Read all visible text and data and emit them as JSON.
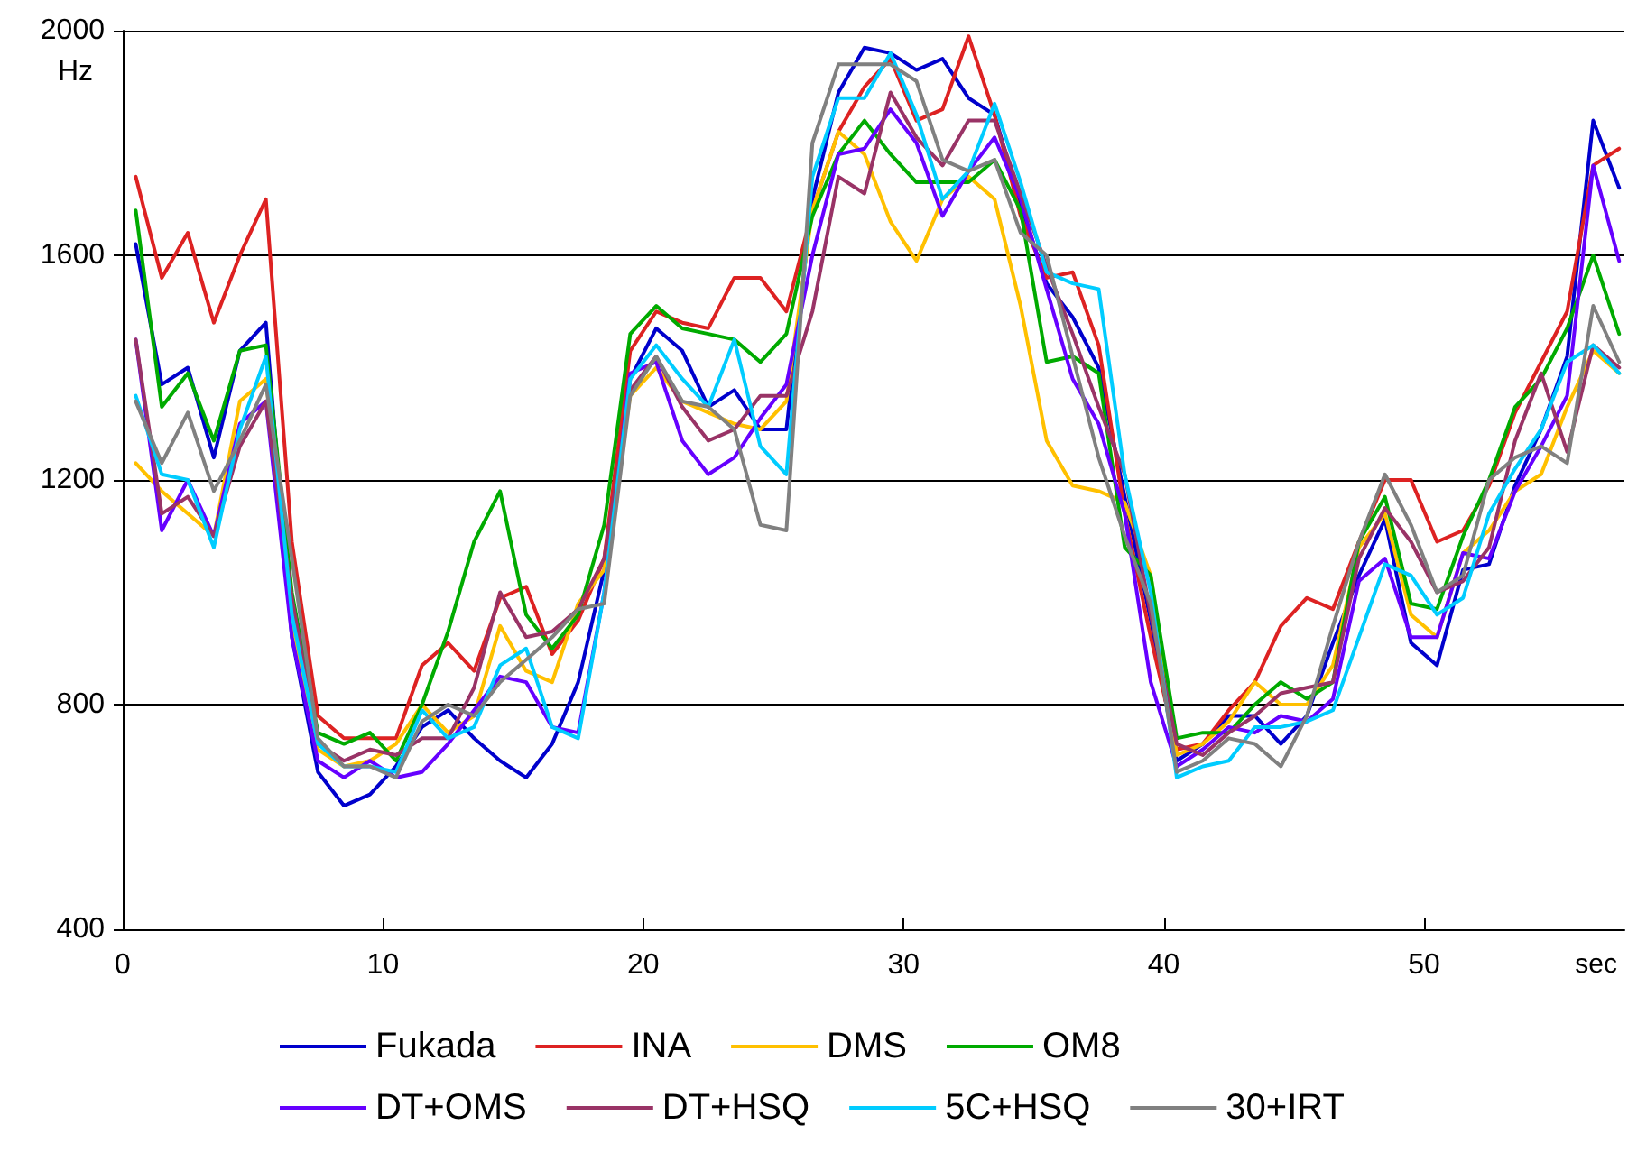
{
  "chart_data": {
    "type": "line",
    "xlabel": "sec",
    "ylabel": "Hz",
    "x": [
      0.5,
      1.5,
      2.5,
      3.5,
      4.5,
      5.5,
      6.5,
      7.5,
      8.5,
      9.5,
      10.5,
      11.5,
      12.5,
      13.5,
      14.5,
      15.5,
      16.5,
      17.5,
      18.5,
      19.5,
      20.5,
      21.5,
      22.5,
      23.5,
      24.5,
      25.5,
      26.5,
      27.5,
      28.5,
      29.5,
      30.5,
      31.5,
      32.5,
      33.5,
      34.5,
      35.5,
      36.5,
      37.5,
      38.5,
      39.5,
      40.5,
      41.5,
      42.5,
      43.5,
      44.5,
      45.5,
      46.5,
      47.5,
      48.5,
      49.5,
      50.5,
      51.5,
      52.5,
      53.5,
      54.5,
      55.5,
      56.5,
      57.5
    ],
    "xlim": [
      0,
      57.7
    ],
    "xticks": [
      0,
      10,
      20,
      30,
      40,
      50
    ],
    "ylim": [
      400,
      2000
    ],
    "yticks": [
      400,
      800,
      1200,
      1600,
      2000
    ],
    "grid": "y",
    "legend": "bottom",
    "marker": "none",
    "line_style": "solid",
    "series": [
      {
        "name": "Fukada",
        "color": "#0000cc",
        "values": [
          1620,
          1370,
          1400,
          1240,
          1430,
          1480,
          920,
          680,
          620,
          640,
          690,
          760,
          790,
          740,
          700,
          670,
          730,
          840,
          1040,
          1380,
          1470,
          1430,
          1330,
          1360,
          1290,
          1290,
          1700,
          1890,
          1970,
          1960,
          1930,
          1950,
          1880,
          1850,
          1690,
          1550,
          1490,
          1400,
          1170,
          950,
          700,
          730,
          780,
          780,
          730,
          780,
          910,
          1030,
          1130,
          910,
          870,
          1040,
          1050,
          1190,
          1290,
          1420,
          1840,
          1720
        ]
      },
      {
        "name": "INA",
        "color": "#dd2222",
        "values": [
          1740,
          1560,
          1640,
          1480,
          1600,
          1700,
          1090,
          780,
          740,
          740,
          740,
          870,
          910,
          860,
          990,
          1010,
          890,
          950,
          1060,
          1430,
          1500,
          1480,
          1470,
          1560,
          1560,
          1500,
          1680,
          1820,
          1900,
          1950,
          1840,
          1860,
          1990,
          1850,
          1670,
          1560,
          1570,
          1440,
          1140,
          920,
          720,
          730,
          790,
          840,
          940,
          990,
          970,
          1090,
          1200,
          1200,
          1090,
          1110,
          1190,
          1320,
          1410,
          1500,
          1760,
          1790
        ]
      },
      {
        "name": "DMS",
        "color": "#ffc000",
        "values": [
          1230,
          1180,
          1140,
          1100,
          1340,
          1380,
          950,
          720,
          690,
          700,
          730,
          800,
          750,
          780,
          940,
          860,
          840,
          980,
          1040,
          1350,
          1400,
          1340,
          1320,
          1300,
          1290,
          1340,
          1680,
          1820,
          1780,
          1660,
          1590,
          1700,
          1740,
          1700,
          1510,
          1270,
          1190,
          1180,
          1160,
          1030,
          710,
          730,
          770,
          840,
          800,
          800,
          870,
          1080,
          1140,
          960,
          920,
          1070,
          1110,
          1180,
          1210,
          1330,
          1430,
          1390
        ]
      },
      {
        "name": "OM8",
        "color": "#00aa00",
        "values": [
          1680,
          1330,
          1390,
          1270,
          1430,
          1440,
          1000,
          750,
          730,
          750,
          700,
          800,
          930,
          1090,
          1180,
          960,
          900,
          960,
          1120,
          1460,
          1510,
          1470,
          1460,
          1450,
          1410,
          1460,
          1670,
          1780,
          1840,
          1780,
          1730,
          1730,
          1730,
          1770,
          1680,
          1410,
          1420,
          1390,
          1080,
          1030,
          740,
          750,
          750,
          800,
          840,
          810,
          840,
          1090,
          1170,
          980,
          970,
          1100,
          1200,
          1330,
          1380,
          1470,
          1600,
          1460
        ]
      },
      {
        "name": "DT+OMS",
        "color": "#6600ff",
        "values": [
          1450,
          1110,
          1200,
          1100,
          1300,
          1340,
          920,
          700,
          670,
          700,
          670,
          680,
          730,
          790,
          850,
          840,
          760,
          750,
          1000,
          1390,
          1410,
          1270,
          1210,
          1240,
          1310,
          1370,
          1600,
          1780,
          1790,
          1860,
          1800,
          1670,
          1750,
          1810,
          1700,
          1540,
          1380,
          1300,
          1140,
          840,
          690,
          720,
          760,
          750,
          780,
          770,
          810,
          1020,
          1060,
          920,
          920,
          1070,
          1060,
          1180,
          1260,
          1350,
          1760,
          1590
        ]
      },
      {
        "name": "DT+HSQ",
        "color": "#993366",
        "values": [
          1450,
          1140,
          1170,
          1100,
          1260,
          1340,
          990,
          730,
          700,
          720,
          710,
          740,
          740,
          830,
          1000,
          920,
          930,
          970,
          1060,
          1360,
          1420,
          1330,
          1270,
          1290,
          1350,
          1350,
          1500,
          1740,
          1710,
          1890,
          1810,
          1760,
          1840,
          1840,
          1710,
          1580,
          1460,
          1330,
          1210,
          960,
          730,
          710,
          750,
          780,
          820,
          830,
          840,
          1060,
          1150,
          1090,
          1000,
          1020,
          1080,
          1270,
          1390,
          1250,
          1440,
          1400
        ]
      },
      {
        "name": "5C+HSQ",
        "color": "#00ccff",
        "values": [
          1350,
          1210,
          1200,
          1080,
          1290,
          1420,
          960,
          730,
          690,
          690,
          680,
          790,
          740,
          760,
          870,
          900,
          760,
          740,
          1000,
          1380,
          1440,
          1380,
          1330,
          1450,
          1260,
          1210,
          1740,
          1880,
          1880,
          1960,
          1850,
          1700,
          1750,
          1870,
          1730,
          1570,
          1550,
          1540,
          1210,
          1000,
          670,
          690,
          700,
          760,
          760,
          770,
          790,
          920,
          1050,
          1030,
          960,
          990,
          1140,
          1220,
          1290,
          1410,
          1440,
          1390
        ]
      },
      {
        "name": "30+IRT",
        "color": "#808080",
        "values": [
          1340,
          1230,
          1320,
          1180,
          1270,
          1370,
          1060,
          740,
          690,
          690,
          670,
          770,
          800,
          780,
          840,
          880,
          920,
          970,
          980,
          1350,
          1420,
          1340,
          1330,
          1290,
          1120,
          1110,
          1800,
          1940,
          1940,
          1940,
          1910,
          1770,
          1750,
          1770,
          1640,
          1600,
          1420,
          1240,
          1100,
          980,
          680,
          700,
          740,
          730,
          690,
          780,
          940,
          1090,
          1210,
          1120,
          1000,
          1030,
          1200,
          1240,
          1260,
          1230,
          1510,
          1410
        ]
      }
    ]
  }
}
